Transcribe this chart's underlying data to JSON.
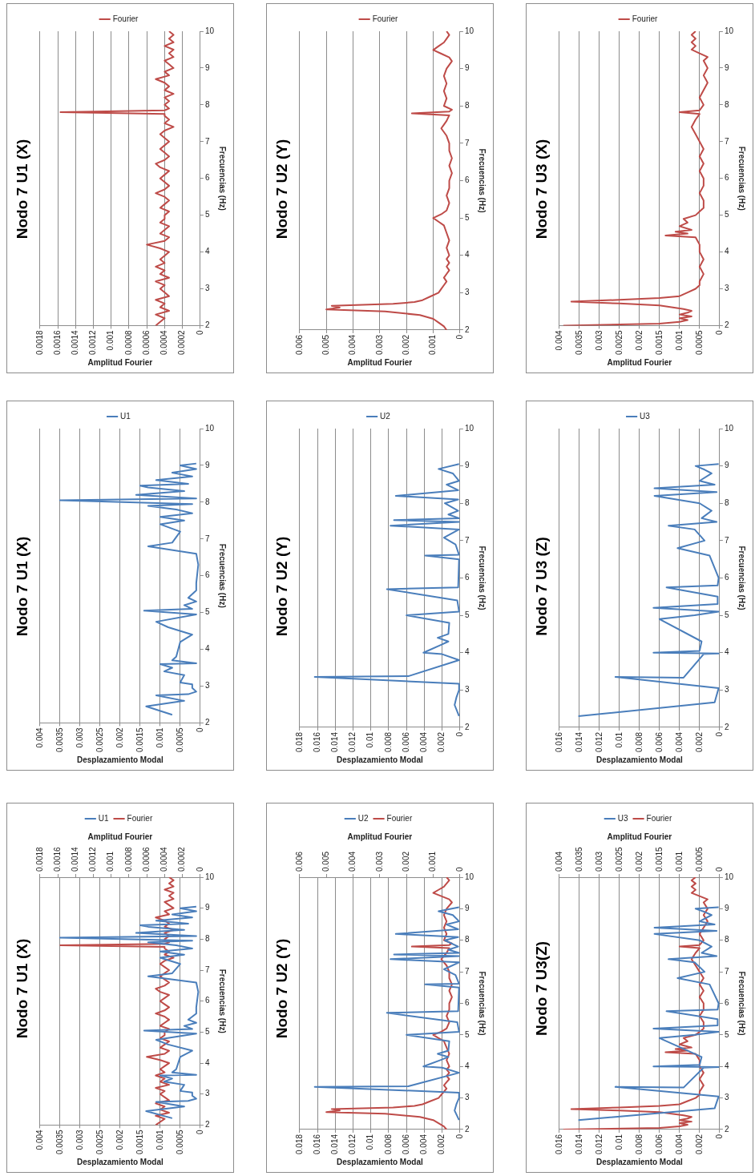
{
  "chart_data": [
    {
      "type": "line",
      "title": "Nodo 7 U1 (X)",
      "ylabel": "Frecuencias (Hz)",
      "xlabel": "Desplazamiento Modal",
      "x2label": "Amplitud Fourier",
      "ylim": [
        2,
        10
      ],
      "yticks": [
        2,
        3,
        4,
        5,
        6,
        7,
        8,
        9,
        10
      ],
      "xlim": [
        0.004,
        0
      ],
      "xticks": [
        0,
        0.0005,
        0.001,
        0.0015,
        0.002,
        0.0025,
        0.003,
        0.0035,
        0.004
      ],
      "x2lim": [
        0.0018,
        0
      ],
      "x2ticks": [
        0,
        0.0002,
        0.0004,
        0.0006,
        0.0008,
        0.001,
        0.0012,
        0.0014,
        0.0016,
        0.0018
      ],
      "grid": "x",
      "legend": "top",
      "series": [
        {
          "name": "U1",
          "color": "#4a7ebb",
          "values": [
            2.22,
            2.45,
            2.6,
            2.75,
            2.78,
            2.85,
            2.95,
            3.05,
            3.1,
            3.3,
            3.4,
            3.5,
            3.6,
            3.62,
            3.7,
            3.8,
            4.2,
            4.4,
            4.6,
            4.75,
            4.95,
            5.05,
            5.1,
            5.2,
            5.3,
            5.4,
            5.6,
            5.8,
            6.3,
            6.6,
            6.8,
            6.9,
            7.2,
            7.4,
            7.5,
            7.6,
            7.7,
            7.8,
            7.9,
            7.95,
            8.05,
            8.1,
            8.2,
            8.3,
            8.4,
            8.45,
            8.5,
            8.6,
            8.7,
            8.8,
            8.9,
            9.0,
            9.05
          ],
          "x": [
            0.0007,
            0.00135,
            0.0004,
            0.0011,
            0.0003,
            0.0001,
            0.0002,
            0.0002,
            0.0005,
            0.0004,
            0.0009,
            0.0007,
            0.001,
            0.0001,
            0.0007,
            0.0006,
            0.0005,
            0.0002,
            0.0008,
            0.0011,
            0.0001,
            0.0014,
            0.0002,
            0.0004,
            0.0001,
            0.0003,
            0.0001,
            0.0001,
            5e-05,
            0.0001,
            0.0013,
            0.0007,
            0.0005,
            0.001,
            0.0004,
            0.001,
            0.0002,
            0.0006,
            0.0013,
            0.0002,
            0.0035,
            0.0001,
            0.0016,
            0.0004,
            0.0013,
            0.0015,
            0.0003,
            0.0011,
            0.0002,
            0.0007,
            0.0001,
            0.0005,
            0.0001
          ]
        },
        {
          "name": "Fourier",
          "color": "#be4b48",
          "axis": "x2",
          "values": [
            2.0,
            2.1,
            2.2,
            2.3,
            2.4,
            2.5,
            2.6,
            2.7,
            2.8,
            2.9,
            3.0,
            3.1,
            3.2,
            3.3,
            3.4,
            3.5,
            3.6,
            3.7,
            3.8,
            3.9,
            4.0,
            4.1,
            4.2,
            4.3,
            4.4,
            4.5,
            4.6,
            4.7,
            4.8,
            4.9,
            5.0,
            5.1,
            5.2,
            5.3,
            5.4,
            5.5,
            5.6,
            5.7,
            5.8,
            5.9,
            6.0,
            6.1,
            6.2,
            6.3,
            6.4,
            6.5,
            6.6,
            6.7,
            6.8,
            6.9,
            7.0,
            7.1,
            7.2,
            7.3,
            7.4,
            7.5,
            7.6,
            7.7,
            7.75,
            7.8,
            7.85,
            7.9,
            8.0,
            8.1,
            8.2,
            8.3,
            8.4,
            8.5,
            8.6,
            8.7,
            8.8,
            8.9,
            9.0,
            9.1,
            9.2,
            9.3,
            9.4,
            9.5,
            9.6,
            9.7,
            9.8,
            9.9,
            10.0
          ],
          "x": [
            0.0005,
            0.00045,
            0.0004,
            0.0005,
            0.00035,
            0.00045,
            0.0004,
            0.0005,
            0.00035,
            0.0004,
            0.00045,
            0.0004,
            0.0005,
            0.00035,
            0.00045,
            0.0004,
            0.0005,
            0.0004,
            0.00045,
            0.0004,
            0.00035,
            0.00045,
            0.0006,
            0.0004,
            0.00035,
            0.00045,
            0.0004,
            0.00035,
            0.00045,
            0.0004,
            0.0004,
            0.00035,
            0.00045,
            0.0004,
            0.00035,
            0.0004,
            0.0005,
            0.0004,
            0.00035,
            0.0004,
            0.00045,
            0.0004,
            0.00035,
            0.00045,
            0.0005,
            0.0004,
            0.00035,
            0.0004,
            0.00045,
            0.0004,
            0.00035,
            0.0004,
            0.00045,
            0.0004,
            0.0003,
            0.0004,
            0.00035,
            0.0004,
            0.0004,
            0.00157,
            0.0004,
            0.00035,
            0.0004,
            0.00035,
            0.0004,
            0.0003,
            0.0004,
            0.00035,
            0.0004,
            0.0005,
            0.00035,
            0.0004,
            0.0003,
            0.00035,
            0.0004,
            0.0003,
            0.00035,
            0.0003,
            0.0004,
            0.0003,
            0.00035,
            0.0003,
            0.00035
          ]
        }
      ]
    },
    {
      "type": "line",
      "title": "Nodo 7 U1 (X)",
      "ylabel": "Frecuencias (Hz)",
      "xlabel": "Desplazamiento Modal",
      "ylim": [
        2,
        10
      ],
      "yticks": [
        2,
        3,
        4,
        5,
        6,
        7,
        8,
        9,
        10
      ],
      "xlim": [
        0.004,
        0
      ],
      "xticks": [
        0,
        0.0005,
        0.001,
        0.0015,
        0.002,
        0.0025,
        0.003,
        0.0035,
        0.004
      ],
      "grid": "x",
      "legend": "top",
      "series": [
        {
          "name": "U1",
          "color": "#4a7ebb",
          "values": [
            2.22,
            2.45,
            2.6,
            2.75,
            2.78,
            2.85,
            2.95,
            3.05,
            3.1,
            3.3,
            3.4,
            3.5,
            3.6,
            3.62,
            3.7,
            3.8,
            4.2,
            4.4,
            4.6,
            4.75,
            4.95,
            5.05,
            5.1,
            5.2,
            5.3,
            5.4,
            5.6,
            5.8,
            6.3,
            6.6,
            6.8,
            6.9,
            7.2,
            7.4,
            7.5,
            7.6,
            7.7,
            7.8,
            7.9,
            7.95,
            8.05,
            8.1,
            8.2,
            8.3,
            8.4,
            8.45,
            8.5,
            8.6,
            8.7,
            8.8,
            8.9,
            9.0,
            9.05
          ],
          "x": [
            0.0007,
            0.00135,
            0.0004,
            0.0011,
            0.0003,
            0.0001,
            0.0002,
            0.0002,
            0.0005,
            0.0004,
            0.0009,
            0.0007,
            0.001,
            0.0001,
            0.0007,
            0.0006,
            0.0005,
            0.0002,
            0.0008,
            0.0011,
            0.0001,
            0.0014,
            0.0002,
            0.0004,
            0.0001,
            0.0003,
            0.0001,
            0.0001,
            5e-05,
            0.0001,
            0.0013,
            0.0007,
            0.0005,
            0.001,
            0.0004,
            0.001,
            0.0002,
            0.0006,
            0.0013,
            0.0002,
            0.0035,
            0.0001,
            0.0016,
            0.0004,
            0.0013,
            0.0015,
            0.0003,
            0.0011,
            0.0002,
            0.0007,
            0.0001,
            0.0005,
            0.0001
          ]
        }
      ]
    },
    {
      "type": "line",
      "title": "Nodo 7 U1 (X)",
      "ylabel": "Frecuencias (Hz)",
      "xlabel": "Amplitud Fourier",
      "ylim": [
        2,
        10
      ],
      "yticks": [
        2,
        3,
        4,
        5,
        6,
        7,
        8,
        9,
        10
      ],
      "xlim": [
        0.0018,
        0
      ],
      "xticks": [
        0,
        0.0002,
        0.0004,
        0.0006,
        0.0008,
        0.001,
        0.0012,
        0.0014,
        0.0016,
        0.0018
      ],
      "grid": "x",
      "legend": "top",
      "series": [
        {
          "name": "Fourier",
          "color": "#be4b48",
          "values": [
            2.0,
            2.1,
            2.2,
            2.3,
            2.4,
            2.5,
            2.6,
            2.7,
            2.8,
            2.9,
            3.0,
            3.1,
            3.2,
            3.3,
            3.4,
            3.5,
            3.6,
            3.7,
            3.8,
            3.9,
            4.0,
            4.1,
            4.2,
            4.3,
            4.4,
            4.5,
            4.6,
            4.7,
            4.8,
            4.9,
            5.0,
            5.1,
            5.2,
            5.3,
            5.4,
            5.5,
            5.6,
            5.7,
            5.8,
            5.9,
            6.0,
            6.1,
            6.2,
            6.3,
            6.4,
            6.5,
            6.6,
            6.7,
            6.8,
            6.9,
            7.0,
            7.1,
            7.2,
            7.3,
            7.4,
            7.5,
            7.6,
            7.7,
            7.75,
            7.8,
            7.85,
            7.9,
            8.0,
            8.1,
            8.2,
            8.3,
            8.4,
            8.5,
            8.6,
            8.7,
            8.8,
            8.9,
            9.0,
            9.1,
            9.2,
            9.3,
            9.4,
            9.5,
            9.6,
            9.7,
            9.8,
            9.9,
            10.0
          ],
          "x": [
            0.0005,
            0.00045,
            0.0004,
            0.0005,
            0.00035,
            0.00045,
            0.0004,
            0.0005,
            0.00035,
            0.0004,
            0.00045,
            0.0004,
            0.0005,
            0.00035,
            0.00045,
            0.0004,
            0.0005,
            0.0004,
            0.00045,
            0.0004,
            0.00035,
            0.00045,
            0.0006,
            0.0004,
            0.00035,
            0.00045,
            0.0004,
            0.00035,
            0.00045,
            0.0004,
            0.0004,
            0.00035,
            0.00045,
            0.0004,
            0.00035,
            0.0004,
            0.0005,
            0.0004,
            0.00035,
            0.0004,
            0.00045,
            0.0004,
            0.00035,
            0.00045,
            0.0005,
            0.0004,
            0.00035,
            0.0004,
            0.00045,
            0.0004,
            0.00035,
            0.0004,
            0.00045,
            0.0004,
            0.0003,
            0.0004,
            0.00035,
            0.0004,
            0.0004,
            0.00157,
            0.0004,
            0.00035,
            0.0004,
            0.00035,
            0.0004,
            0.0003,
            0.0004,
            0.00035,
            0.0004,
            0.0005,
            0.00035,
            0.0004,
            0.0003,
            0.00035,
            0.0004,
            0.0003,
            0.00035,
            0.0003,
            0.0004,
            0.0003,
            0.00035,
            0.0003,
            0.00035
          ]
        }
      ]
    },
    {
      "type": "line",
      "title": "Nodo 7 U2 (Y)",
      "ylabel": "Frecuencias (Hz)",
      "xlabel": "Desplazamiento Modal",
      "x2label": "Amplitud Fourier",
      "ylim": [
        2,
        10
      ],
      "yticks": [
        2,
        3,
        4,
        5,
        6,
        7,
        8,
        9,
        10
      ],
      "xlim": [
        0.018,
        0
      ],
      "xticks": [
        0,
        0.002,
        0.004,
        0.006,
        0.008,
        0.01,
        0.012,
        0.014,
        0.016,
        0.018
      ],
      "x2lim": [
        0.006,
        0
      ],
      "x2ticks": [
        0,
        0.001,
        0.002,
        0.003,
        0.004,
        0.005,
        0.006
      ],
      "grid": "x",
      "legend": "top",
      "series": [
        {
          "name": "U2",
          "color": "#4a7ebb",
          "values": [
            2.3,
            2.6,
            2.8,
            3.0,
            3.17,
            3.35,
            3.37,
            3.8,
            3.96,
            4.0,
            4.2,
            4.3,
            4.4,
            4.5,
            4.8,
            5.0,
            5.1,
            5.4,
            5.7,
            5.75,
            6.5,
            6.6,
            6.62,
            6.9,
            7.08,
            7.3,
            7.4,
            7.5,
            7.55,
            7.6,
            7.7,
            7.8,
            8.0,
            8.1,
            8.2,
            8.35,
            8.5,
            8.6,
            8.8,
            8.92,
            9.05
          ],
          "x": [
            0.0001,
            0.0006,
            0.0004,
            0.0001,
            0.0001,
            0.0163,
            0.0058,
            0.0001,
            0.002,
            0.0041,
            0.0022,
            0.0013,
            0.0025,
            0.0013,
            0.0012,
            0.006,
            0.0001,
            0.0003,
            0.0082,
            0.0002,
            0.0001,
            0.0039,
            0.0001,
            0.0005,
            0.0018,
            0.0001,
            0.0078,
            0.0001,
            0.0074,
            0.0001,
            0.0013,
            0.0002,
            0.0017,
            0.0002,
            0.0072,
            0.0002,
            0.0015,
            0.0001,
            0.0008,
            0.0024,
            0.0001
          ]
        },
        {
          "name": "Fourier",
          "color": "#be4b48",
          "axis": "x2",
          "values": [
            2.0,
            2.1,
            2.2,
            2.3,
            2.4,
            2.5,
            2.55,
            2.6,
            2.65,
            2.7,
            2.75,
            2.8,
            2.9,
            3.0,
            3.1,
            3.2,
            3.3,
            3.4,
            3.5,
            3.6,
            3.7,
            3.8,
            3.9,
            4.0,
            4.2,
            4.4,
            4.6,
            4.8,
            4.9,
            5.0,
            5.1,
            5.2,
            5.4,
            5.6,
            5.8,
            6.0,
            6.2,
            6.4,
            6.6,
            6.8,
            7.0,
            7.2,
            7.4,
            7.5,
            7.6,
            7.75,
            7.8,
            7.85,
            7.9,
            8.0,
            8.2,
            8.4,
            8.6,
            8.8,
            9.0,
            9.2,
            9.3,
            9.4,
            9.5,
            9.6,
            9.7,
            9.8,
            9.9,
            10.0
          ],
          "x": [
            0.0005,
            0.0006,
            0.0008,
            0.001,
            0.0015,
            0.0028,
            0.005,
            0.0045,
            0.0048,
            0.0025,
            0.0017,
            0.0014,
            0.0011,
            0.0008,
            0.0007,
            0.0006,
            0.0005,
            0.0006,
            0.0005,
            0.0004,
            0.0005,
            0.0004,
            0.0005,
            0.0004,
            0.0005,
            0.0004,
            0.0005,
            0.0006,
            0.0008,
            0.001,
            0.0007,
            0.0005,
            0.0004,
            0.0005,
            0.0004,
            0.0004,
            0.0003,
            0.0004,
            0.0003,
            0.0004,
            0.0004,
            0.0005,
            0.0007,
            0.0006,
            0.0005,
            0.0004,
            0.0018,
            0.0004,
            0.0003,
            0.0006,
            0.0005,
            0.0006,
            0.0005,
            0.0006,
            0.0005,
            0.0003,
            0.0004,
            0.0007,
            0.001,
            0.0008,
            0.0006,
            0.0005,
            0.0004,
            0.0005
          ]
        }
      ]
    },
    {
      "type": "line",
      "title": "Nodo 7 U2 (Y)",
      "ylabel": "Frecuencias (Hz)",
      "xlabel": "Desplazamiento Modal",
      "ylim": [
        2,
        10
      ],
      "yticks": [
        2,
        3,
        4,
        5,
        6,
        7,
        8,
        9,
        10
      ],
      "xlim": [
        0.018,
        0
      ],
      "xticks": [
        0,
        0.002,
        0.004,
        0.006,
        0.008,
        0.01,
        0.012,
        0.014,
        0.016,
        0.018
      ],
      "grid": "x",
      "legend": "top",
      "series": [
        {
          "name": "U2",
          "color": "#4a7ebb",
          "values": [
            2.3,
            2.6,
            2.8,
            3.0,
            3.17,
            3.35,
            3.37,
            3.8,
            3.96,
            4.0,
            4.2,
            4.3,
            4.4,
            4.5,
            4.8,
            5.0,
            5.1,
            5.4,
            5.7,
            5.75,
            6.5,
            6.6,
            6.62,
            6.9,
            7.08,
            7.3,
            7.4,
            7.5,
            7.55,
            7.6,
            7.7,
            7.8,
            8.0,
            8.1,
            8.2,
            8.35,
            8.5,
            8.6,
            8.8,
            8.92,
            9.05
          ],
          "x": [
            0.0001,
            0.0006,
            0.0004,
            0.0001,
            0.0001,
            0.0163,
            0.0058,
            0.0001,
            0.002,
            0.0041,
            0.0022,
            0.0013,
            0.0025,
            0.0013,
            0.0012,
            0.006,
            0.0001,
            0.0003,
            0.0082,
            0.0002,
            0.0001,
            0.0039,
            0.0001,
            0.0005,
            0.0018,
            0.0001,
            0.0078,
            0.0001,
            0.0074,
            0.0001,
            0.0013,
            0.0002,
            0.0017,
            0.0002,
            0.0072,
            0.0002,
            0.0015,
            0.0001,
            0.0008,
            0.0024,
            0.0001
          ]
        }
      ]
    },
    {
      "type": "line",
      "title": "Nodo 7 U2 (Y)",
      "ylabel": "Frecuencias (Hz)",
      "xlabel": "Amplitud Fourier",
      "ylim": [
        2,
        10
      ],
      "yticks": [
        2,
        3,
        4,
        5,
        6,
        7,
        8,
        9,
        10
      ],
      "xlim": [
        0.006,
        0
      ],
      "xticks": [
        0,
        0.001,
        0.002,
        0.003,
        0.004,
        0.005,
        0.006
      ],
      "grid": "x",
      "legend": "top",
      "series": [
        {
          "name": "Fourier",
          "color": "#be4b48",
          "values": [
            2.0,
            2.1,
            2.2,
            2.3,
            2.4,
            2.5,
            2.55,
            2.6,
            2.65,
            2.7,
            2.75,
            2.8,
            2.9,
            3.0,
            3.1,
            3.2,
            3.3,
            3.4,
            3.5,
            3.6,
            3.7,
            3.8,
            3.9,
            4.0,
            4.2,
            4.4,
            4.6,
            4.8,
            4.9,
            5.0,
            5.1,
            5.2,
            5.4,
            5.6,
            5.8,
            6.0,
            6.2,
            6.4,
            6.6,
            6.8,
            7.0,
            7.2,
            7.4,
            7.5,
            7.6,
            7.75,
            7.8,
            7.85,
            7.9,
            8.0,
            8.2,
            8.4,
            8.6,
            8.8,
            9.0,
            9.2,
            9.3,
            9.4,
            9.5,
            9.6,
            9.7,
            9.8,
            9.9,
            10.0
          ],
          "x": [
            0.0005,
            0.0006,
            0.0008,
            0.001,
            0.0015,
            0.0028,
            0.005,
            0.0045,
            0.0048,
            0.0025,
            0.0017,
            0.0014,
            0.0011,
            0.0008,
            0.0007,
            0.0006,
            0.0005,
            0.0006,
            0.0005,
            0.0004,
            0.0005,
            0.0004,
            0.0005,
            0.0004,
            0.0005,
            0.0004,
            0.0005,
            0.0006,
            0.0008,
            0.001,
            0.0007,
            0.0005,
            0.0004,
            0.0005,
            0.0004,
            0.0004,
            0.0003,
            0.0004,
            0.0003,
            0.0004,
            0.0004,
            0.0005,
            0.0007,
            0.0006,
            0.0005,
            0.0004,
            0.0018,
            0.0004,
            0.0003,
            0.0006,
            0.0005,
            0.0006,
            0.0005,
            0.0006,
            0.0005,
            0.0003,
            0.0004,
            0.0007,
            0.001,
            0.0008,
            0.0006,
            0.0005,
            0.0004,
            0.0005
          ]
        }
      ]
    },
    {
      "type": "line",
      "title": "Nodo 7 U3(Z)",
      "ylabel": "Frecuencias (Hz)",
      "xlabel": "Desplazamiento Modal",
      "x2label": "Amplitud Fourier",
      "ylim": [
        2,
        10
      ],
      "yticks": [
        2,
        3,
        4,
        5,
        6,
        7,
        8,
        9,
        10
      ],
      "xlim": [
        0.016,
        0
      ],
      "xticks": [
        0,
        0.002,
        0.004,
        0.006,
        0.008,
        0.01,
        0.012,
        0.014,
        0.016
      ],
      "x2lim": [
        0.004,
        0
      ],
      "x2ticks": [
        0,
        0.0005,
        0.001,
        0.0015,
        0.002,
        0.0025,
        0.003,
        0.0035,
        0.004
      ],
      "grid": "x",
      "legend": "top",
      "series": [
        {
          "name": "U3",
          "color": "#4a7ebb",
          "values": [
            2.3,
            2.67,
            3.05,
            3.35,
            3.33,
            3.96,
            3.98,
            4.0,
            4.05,
            4.3,
            4.9,
            5.0,
            5.1,
            5.2,
            5.3,
            5.5,
            5.75,
            5.8,
            6.0,
            6.6,
            6.8,
            7.0,
            7.3,
            7.4,
            7.5,
            7.6,
            7.8,
            8.0,
            8.2,
            8.3,
            8.4,
            8.5,
            8.6,
            8.8,
            8.9,
            9.0,
            9.05
          ],
          "x": [
            0.0141,
            0.0005,
            0.0001,
            0.0104,
            0.0036,
            0.0016,
            0.0001,
            0.0066,
            0.002,
            0.0018,
            0.006,
            0.0025,
            0.0001,
            0.0066,
            0.0002,
            0.0002,
            0.0053,
            0.0002,
            0.0001,
            0.001,
            0.0042,
            0.0015,
            0.0025,
            0.0051,
            0.0003,
            0.0018,
            0.0008,
            0.002,
            0.0065,
            0.0003,
            0.0065,
            0.0005,
            0.002,
            0.0008,
            0.0015,
            0.0024,
            0.0001
          ]
        },
        {
          "name": "Fourier",
          "color": "#be4b48",
          "axis": "x2",
          "values": [
            2.0,
            2.05,
            2.1,
            2.15,
            2.2,
            2.25,
            2.3,
            2.35,
            2.4,
            2.45,
            2.5,
            2.55,
            2.6,
            2.65,
            2.7,
            2.75,
            2.8,
            2.9,
            3.0,
            3.1,
            3.2,
            3.4,
            3.6,
            3.8,
            4.0,
            4.2,
            4.4,
            4.45,
            4.5,
            4.55,
            4.6,
            4.7,
            4.8,
            4.9,
            5.0,
            5.1,
            5.2,
            5.4,
            5.6,
            5.8,
            6.0,
            6.2,
            6.4,
            6.6,
            6.8,
            7.0,
            7.2,
            7.4,
            7.6,
            7.75,
            7.8,
            7.85,
            8.0,
            8.2,
            8.4,
            8.6,
            8.8,
            9.0,
            9.2,
            9.3,
            9.4,
            9.5,
            9.6,
            9.7,
            9.8,
            9.9,
            10.0
          ],
          "x": [
            0.0039,
            0.0015,
            0.001,
            0.0008,
            0.001,
            0.0007,
            0.001,
            0.0008,
            0.0007,
            0.0009,
            0.0012,
            0.0015,
            0.0025,
            0.0037,
            0.0025,
            0.0015,
            0.001,
            0.0008,
            0.0006,
            0.0005,
            0.0005,
            0.0004,
            0.0005,
            0.0004,
            0.0005,
            0.0005,
            0.0006,
            0.00135,
            0.0008,
            0.0011,
            0.0007,
            0.001,
            0.0008,
            0.0009,
            0.0006,
            0.0005,
            0.0004,
            0.0004,
            0.0005,
            0.0004,
            0.0004,
            0.0005,
            0.0004,
            0.0005,
            0.0004,
            0.0005,
            0.0006,
            0.0007,
            0.0006,
            0.0005,
            0.001,
            0.0005,
            0.0004,
            0.0005,
            0.0004,
            0.0003,
            0.0004,
            0.0003,
            0.0004,
            0.0003,
            0.0005,
            0.0007,
            0.0006,
            0.0007,
            0.0006,
            0.0007,
            0.0006
          ]
        }
      ]
    },
    {
      "type": "line",
      "title": "Nodo 7 U3 (Z)",
      "ylabel": "Frecuencias (Hz)",
      "xlabel": "Desplazamiento Modal",
      "ylim": [
        2,
        10
      ],
      "yticks": [
        2,
        3,
        4,
        5,
        6,
        7,
        8,
        9,
        10
      ],
      "xlim": [
        0.016,
        0
      ],
      "xticks": [
        0,
        0.002,
        0.004,
        0.006,
        0.008,
        0.01,
        0.012,
        0.014,
        0.016
      ],
      "grid": "x",
      "legend": "top",
      "series": [
        {
          "name": "U3",
          "color": "#4a7ebb",
          "values": [
            2.3,
            2.67,
            3.05,
            3.35,
            3.33,
            3.96,
            3.98,
            4.0,
            4.05,
            4.3,
            4.9,
            5.0,
            5.1,
            5.2,
            5.3,
            5.5,
            5.75,
            5.8,
            6.0,
            6.6,
            6.8,
            7.0,
            7.3,
            7.4,
            7.5,
            7.6,
            7.8,
            8.0,
            8.2,
            8.3,
            8.4,
            8.5,
            8.6,
            8.8,
            8.9,
            9.0,
            9.05
          ],
          "x": [
            0.0141,
            0.0005,
            0.0001,
            0.0104,
            0.0036,
            0.0016,
            0.0001,
            0.0066,
            0.002,
            0.0018,
            0.006,
            0.0025,
            0.0001,
            0.0066,
            0.0002,
            0.0002,
            0.0053,
            0.0002,
            0.0001,
            0.001,
            0.0042,
            0.0015,
            0.0025,
            0.0051,
            0.0003,
            0.0018,
            0.0008,
            0.002,
            0.0065,
            0.0003,
            0.0065,
            0.0005,
            0.002,
            0.0008,
            0.0015,
            0.0024,
            0.0001
          ]
        }
      ]
    },
    {
      "type": "line",
      "title": "Nodo 7 U3 (X)",
      "ylabel": "Frecuencias (Hz)",
      "xlabel": "Amplitud Fourier",
      "ylim": [
        2,
        10
      ],
      "yticks": [
        2,
        3,
        4,
        5,
        6,
        7,
        8,
        9,
        10
      ],
      "xlim": [
        0.004,
        0
      ],
      "xticks": [
        0,
        0.0005,
        0.001,
        0.0015,
        0.002,
        0.0025,
        0.003,
        0.0035,
        0.004
      ],
      "grid": "x",
      "legend": "top",
      "series": [
        {
          "name": "Fourier",
          "color": "#be4b48",
          "values": [
            2.0,
            2.05,
            2.1,
            2.15,
            2.2,
            2.25,
            2.3,
            2.35,
            2.4,
            2.45,
            2.5,
            2.55,
            2.6,
            2.65,
            2.7,
            2.75,
            2.8,
            2.9,
            3.0,
            3.1,
            3.2,
            3.4,
            3.6,
            3.8,
            4.0,
            4.2,
            4.4,
            4.45,
            4.5,
            4.55,
            4.6,
            4.7,
            4.8,
            4.9,
            5.0,
            5.1,
            5.2,
            5.4,
            5.6,
            5.8,
            6.0,
            6.2,
            6.4,
            6.6,
            6.8,
            7.0,
            7.2,
            7.4,
            7.6,
            7.75,
            7.8,
            7.85,
            8.0,
            8.2,
            8.4,
            8.6,
            8.8,
            9.0,
            9.2,
            9.3,
            9.4,
            9.5,
            9.6,
            9.7,
            9.8,
            9.9,
            10.0
          ],
          "x": [
            0.0039,
            0.0015,
            0.001,
            0.0008,
            0.001,
            0.0007,
            0.001,
            0.0008,
            0.0007,
            0.0009,
            0.0012,
            0.0015,
            0.0025,
            0.0037,
            0.0025,
            0.0015,
            0.001,
            0.0008,
            0.0006,
            0.0005,
            0.0005,
            0.0004,
            0.0005,
            0.0004,
            0.0005,
            0.0005,
            0.0006,
            0.00135,
            0.0008,
            0.0011,
            0.0007,
            0.001,
            0.0008,
            0.0009,
            0.0006,
            0.0005,
            0.0004,
            0.0004,
            0.0005,
            0.0004,
            0.0004,
            0.0005,
            0.0004,
            0.0005,
            0.0004,
            0.0005,
            0.0006,
            0.0007,
            0.0006,
            0.0005,
            0.001,
            0.0005,
            0.0004,
            0.0005,
            0.0004,
            0.0003,
            0.0004,
            0.0003,
            0.0004,
            0.0003,
            0.0005,
            0.0007,
            0.0006,
            0.0007,
            0.0006,
            0.0007,
            0.0006
          ]
        }
      ]
    }
  ]
}
